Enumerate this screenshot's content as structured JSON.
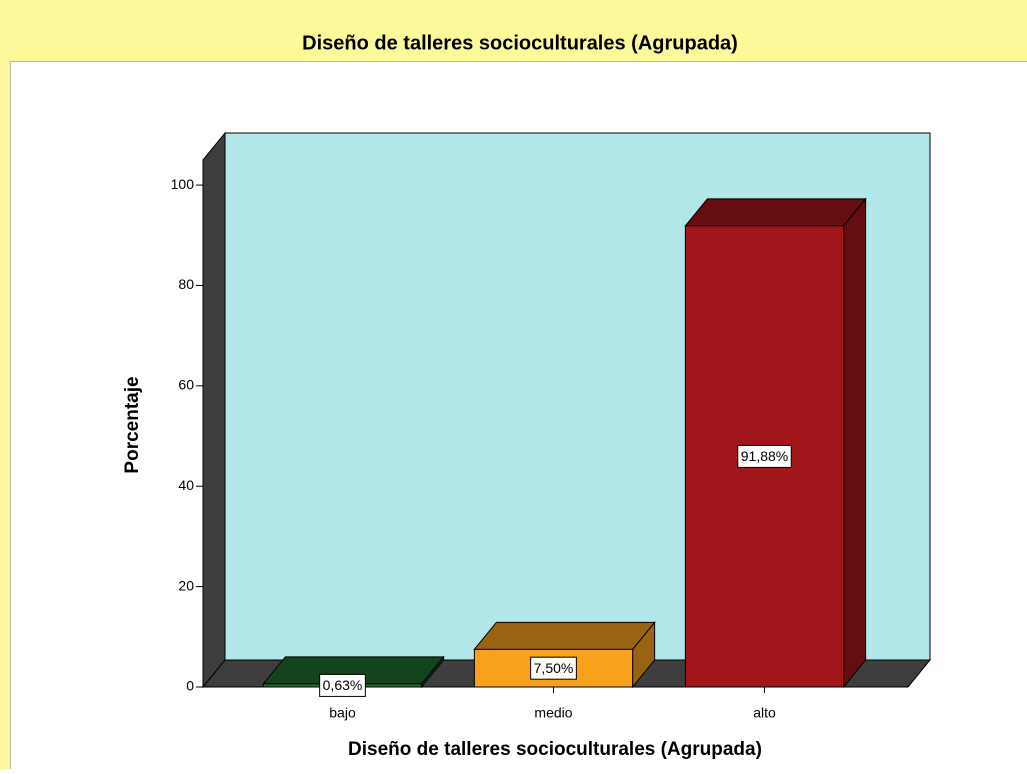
{
  "chart_data": {
    "type": "bar3d",
    "title": "Diseño de talleres socioculturales (Agrupada)",
    "x_label": "Diseño de talleres socioculturales (Agrupada)",
    "y_label": "Porcentaje",
    "categories": [
      "bajo",
      "medio",
      "alto"
    ],
    "values": [
      0.63,
      7.5,
      91.88
    ],
    "value_labels": [
      "0,63%",
      "7,50%",
      "91,88%"
    ],
    "colors": [
      "#1e6e2c",
      "#f7a11d",
      "#a1161b"
    ],
    "ylim": [
      0,
      105
    ],
    "yticks": [
      0,
      20,
      40,
      60,
      80,
      100
    ]
  }
}
